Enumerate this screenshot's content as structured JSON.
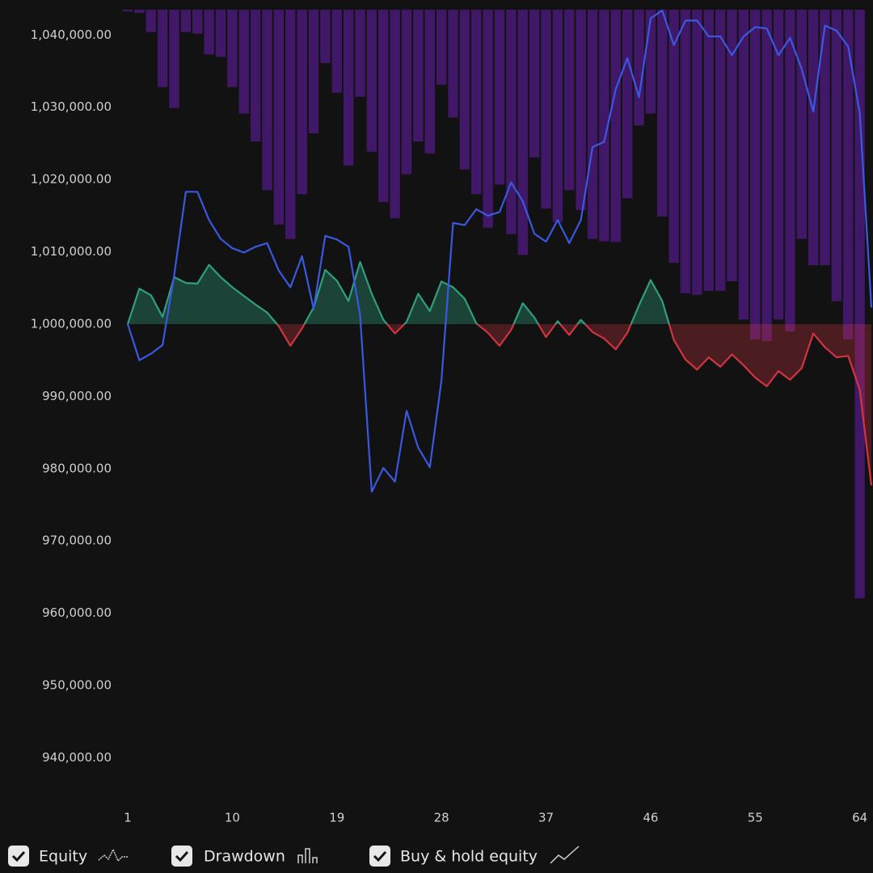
{
  "chart_data": {
    "type": "line",
    "x": [
      1,
      2,
      3,
      4,
      5,
      6,
      7,
      8,
      9,
      10,
      11,
      12,
      13,
      14,
      15,
      16,
      17,
      18,
      19,
      20,
      21,
      22,
      23,
      24,
      25,
      26,
      27,
      28,
      29,
      30,
      31,
      32,
      33,
      34,
      35,
      36,
      37,
      38,
      39,
      40,
      41,
      42,
      43,
      44,
      45,
      46,
      47,
      48,
      49,
      50,
      51,
      52,
      53,
      54,
      55,
      56,
      57,
      58,
      59,
      60,
      61,
      62,
      63,
      64,
      65
    ],
    "xlim": [
      1,
      65
    ],
    "xticks": [
      1,
      10,
      19,
      28,
      37,
      46,
      55,
      64
    ],
    "ylim": [
      933000,
      1043500
    ],
    "yticks": [
      {
        "value": 940000,
        "label": "940,000.00"
      },
      {
        "value": 950000,
        "label": "950,000.00"
      },
      {
        "value": 960000,
        "label": "960,000.00"
      },
      {
        "value": 970000,
        "label": "970,000.00"
      },
      {
        "value": 980000,
        "label": "980,000.00"
      },
      {
        "value": 990000,
        "label": "990,000.00"
      },
      {
        "value": 1000000,
        "label": "1,000,000.00"
      },
      {
        "value": 1010000,
        "label": "1,010,000.00"
      },
      {
        "value": 1020000,
        "label": "1,020,000.00"
      },
      {
        "value": 1030000,
        "label": "1,030,000.00"
      },
      {
        "value": 1040000,
        "label": "1,040,000.00"
      }
    ],
    "y2lim": [
      10,
      0
    ],
    "baseline": 1000000,
    "grid": false,
    "legend": "bottom-left",
    "series": [
      {
        "name": "Drawdown",
        "type": "bar",
        "axis": "y2",
        "color": "#4a1a78",
        "values": [
          0.02,
          0.04,
          0.28,
          0.97,
          1.23,
          0.28,
          0.3,
          0.56,
          0.59,
          0.97,
          1.3,
          1.65,
          2.26,
          2.69,
          2.87,
          2.31,
          1.55,
          0.67,
          1.04,
          1.95,
          1.09,
          1.78,
          2.41,
          2.61,
          2.06,
          1.65,
          1.8,
          0.94,
          1.35,
          2.0,
          2.31,
          2.73,
          2.19,
          2.81,
          3.07,
          1.85,
          2.49,
          2.66,
          2.26,
          2.51,
          2.87,
          2.9,
          2.91,
          2.36,
          1.45,
          1.3,
          2.59,
          3.17,
          3.55,
          3.57,
          3.52,
          3.52,
          3.4,
          3.88,
          4.13,
          4.15,
          3.88,
          4.03,
          2.87,
          3.2,
          3.2,
          3.65,
          4.13,
          7.37,
          null
        ]
      },
      {
        "name": "Equity",
        "type": "area",
        "color": "#2e9e7f",
        "negative_color": "#cf3440",
        "values": [
          1000000,
          1004900,
          1004000,
          1001000,
          1006500,
          1005700,
          1005600,
          1008200,
          1006500,
          1005100,
          1003900,
          1002700,
          1001600,
          999700,
          997000,
          999400,
          1002300,
          1007500,
          1006000,
          1003200,
          1008600,
          1004200,
          1000600,
          998700,
          1000300,
          1004200,
          1001800,
          1005900,
          1005100,
          1003500,
          1000100,
          998800,
          997000,
          999200,
          1002900,
          1000900,
          998200,
          1000400,
          998500,
          1000600,
          998900,
          998000,
          996500,
          998800,
          1002600,
          1006100,
          1003200,
          997800,
          995100,
          993700,
          995400,
          994100,
          995800,
          994300,
          992600,
          991400,
          993500,
          992300,
          993900,
          998700,
          996800,
          995400,
          995600,
          990900,
          977700
        ]
      },
      {
        "name": "Buy & hold equity",
        "type": "line",
        "color": "#3a58e0",
        "values": [
          1000000,
          995000,
          995900,
          997100,
          1006800,
          1018300,
          1018300,
          1014400,
          1011800,
          1010500,
          1009900,
          1010700,
          1011200,
          1007400,
          1005100,
          1009400,
          1002100,
          1012200,
          1011700,
          1010700,
          1001200,
          976800,
          980100,
          978200,
          988000,
          982900,
          980200,
          992200,
          1014000,
          1013700,
          1015900,
          1015000,
          1015500,
          1019600,
          1017000,
          1012500,
          1011400,
          1014400,
          1011200,
          1014400,
          1024500,
          1025200,
          1032500,
          1036800,
          1031400,
          1042300,
          1043400,
          1038600,
          1042000,
          1042000,
          1039800,
          1039800,
          1037200,
          1039800,
          1041100,
          1040900,
          1037200,
          1039600,
          1035300,
          1029400,
          1041300,
          1040600,
          1038400,
          1029200,
          1002300
        ]
      }
    ]
  }
}
